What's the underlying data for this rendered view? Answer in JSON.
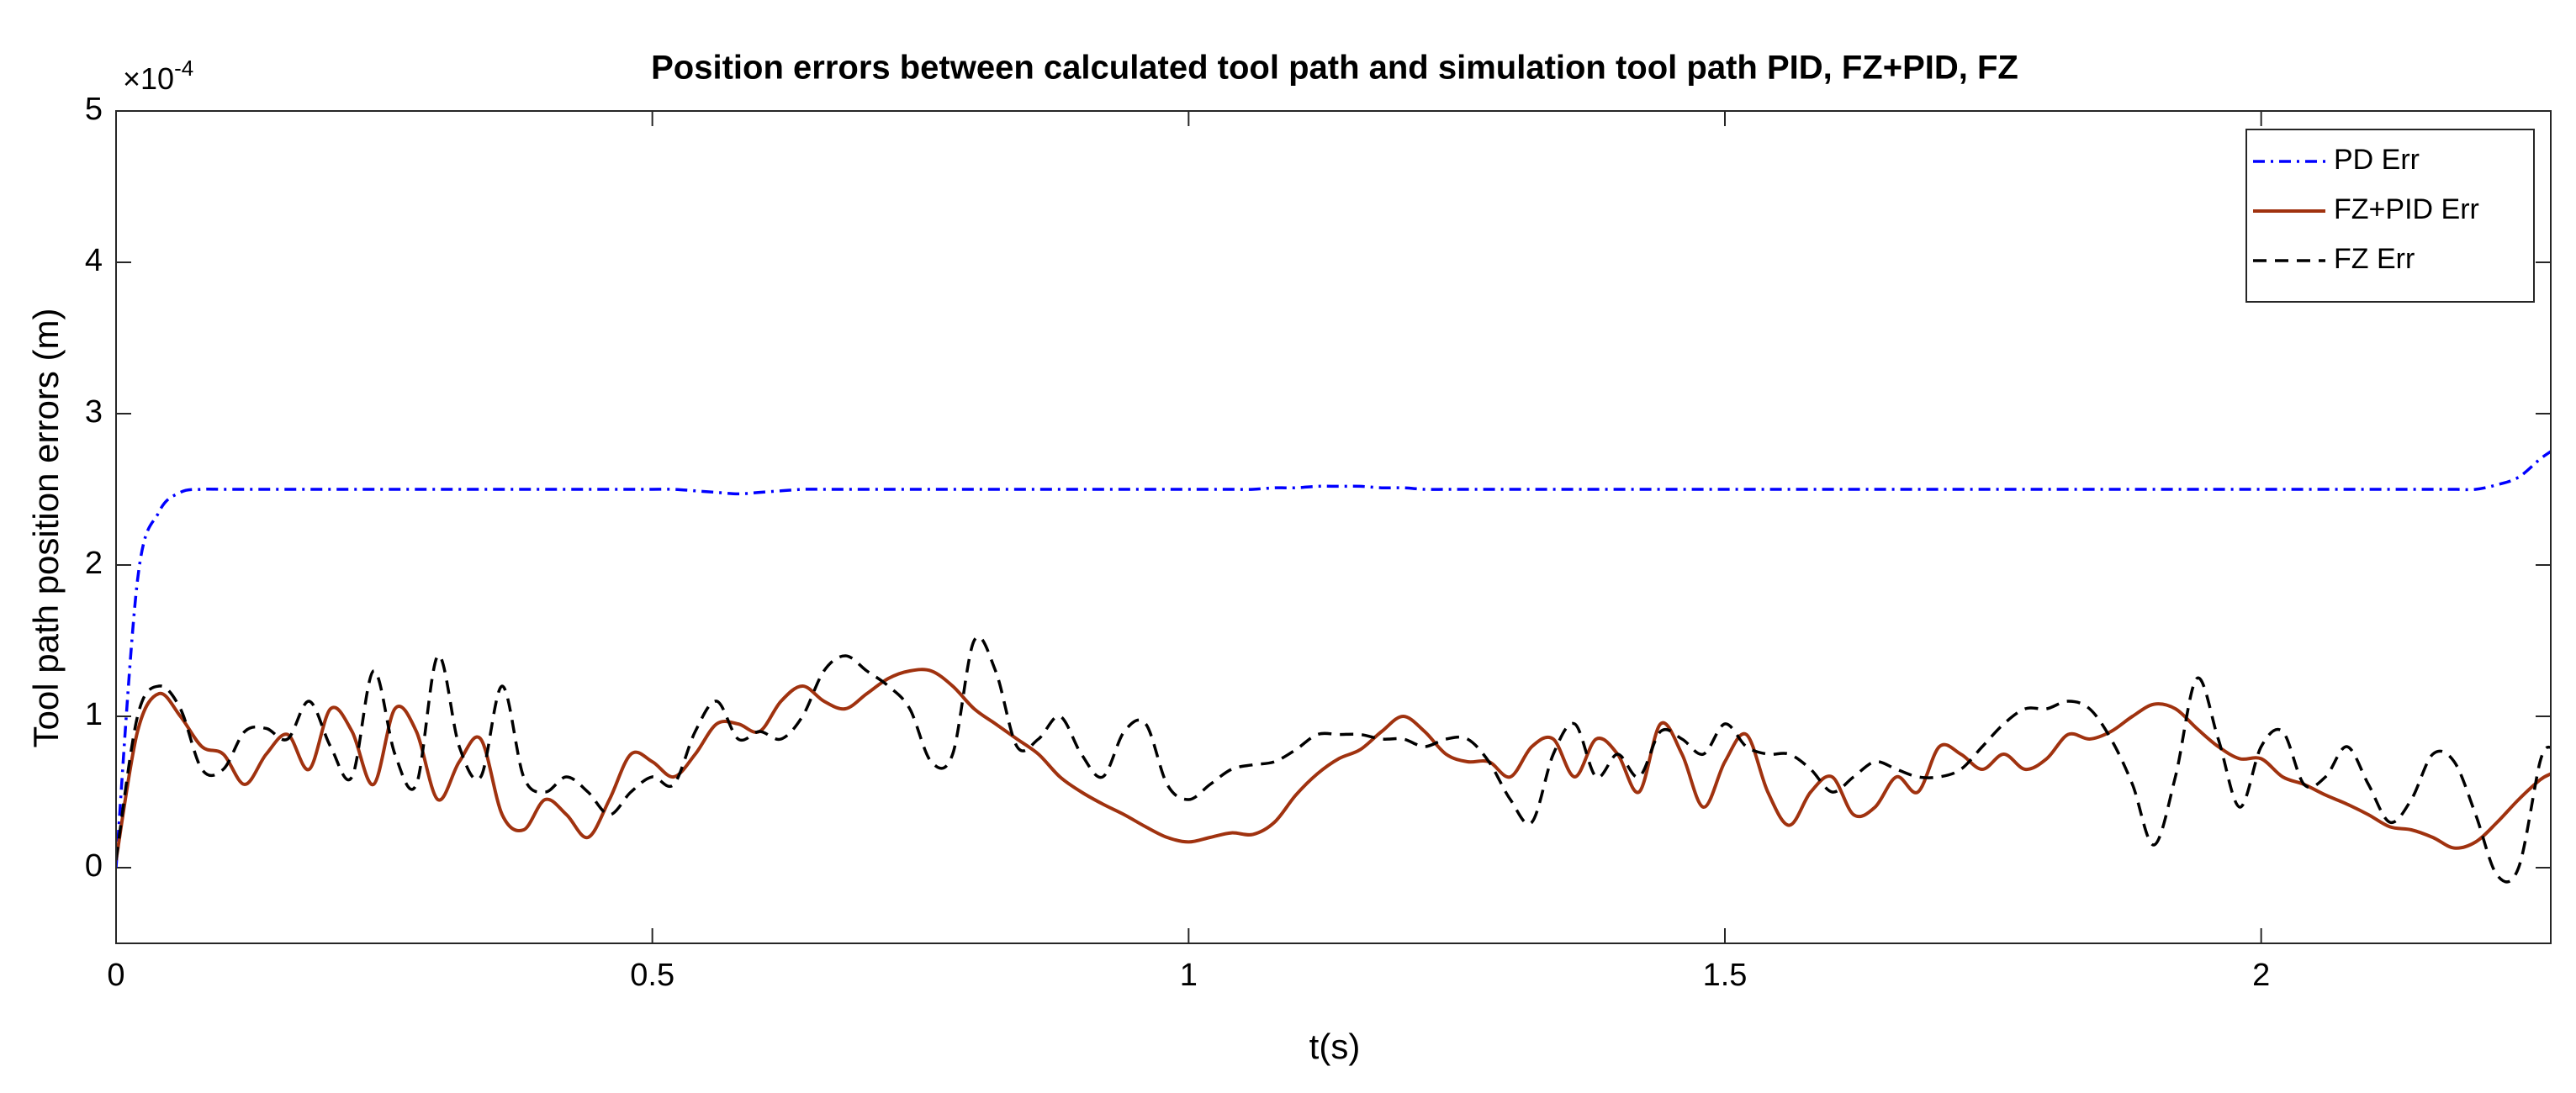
{
  "chart_data": {
    "type": "line",
    "title": "Position errors between calculated tool path and simulation tool path PID, FZ+PID, FZ",
    "xlabel": "t(s)",
    "ylabel": "Tool path position errors (m)",
    "yexponent": {
      "base": "×10",
      "power": "-4"
    },
    "xlim": [
      0,
      2.27
    ],
    "ylim": [
      -0.5,
      5
    ],
    "xticks": [
      0,
      0.5,
      1,
      1.5,
      2
    ],
    "yticks": [
      0,
      1,
      2,
      3,
      4,
      5
    ],
    "grid": false,
    "legend": "top-right",
    "x": [
      0,
      0.02,
      0.04,
      0.06,
      0.08,
      0.1,
      0.12,
      0.14,
      0.16,
      0.18,
      0.2,
      0.22,
      0.24,
      0.26,
      0.28,
      0.3,
      0.32,
      0.34,
      0.36,
      0.38,
      0.4,
      0.42,
      0.44,
      0.46,
      0.48,
      0.5,
      0.52,
      0.54,
      0.56,
      0.58,
      0.6,
      0.62,
      0.64,
      0.66,
      0.68,
      0.7,
      0.72,
      0.74,
      0.76,
      0.78,
      0.8,
      0.82,
      0.84,
      0.86,
      0.88,
      0.9,
      0.92,
      0.94,
      0.96,
      0.98,
      1.0,
      1.02,
      1.04,
      1.06,
      1.08,
      1.1,
      1.12,
      1.14,
      1.16,
      1.18,
      1.2,
      1.22,
      1.24,
      1.26,
      1.28,
      1.3,
      1.32,
      1.34,
      1.36,
      1.38,
      1.4,
      1.42,
      1.44,
      1.46,
      1.48,
      1.5,
      1.52,
      1.54,
      1.56,
      1.58,
      1.6,
      1.62,
      1.64,
      1.66,
      1.68,
      1.7,
      1.72,
      1.74,
      1.76,
      1.78,
      1.8,
      1.82,
      1.84,
      1.86,
      1.88,
      1.9,
      1.92,
      1.94,
      1.96,
      1.98,
      2.0,
      2.02,
      2.04,
      2.06,
      2.08,
      2.1,
      2.12,
      2.14,
      2.16,
      2.18,
      2.2,
      2.22,
      2.24,
      2.26,
      2.27
    ],
    "series": [
      {
        "name": "PD Err",
        "color": "#0000ff",
        "dash": "dashdot",
        "values": [
          0,
          1.9,
          2.35,
          2.48,
          2.5,
          2.5,
          2.5,
          2.5,
          2.5,
          2.5,
          2.5,
          2.5,
          2.5,
          2.5,
          2.5,
          2.5,
          2.5,
          2.5,
          2.5,
          2.5,
          2.5,
          2.5,
          2.5,
          2.5,
          2.5,
          2.5,
          2.5,
          2.49,
          2.48,
          2.47,
          2.48,
          2.49,
          2.5,
          2.5,
          2.5,
          2.5,
          2.5,
          2.5,
          2.5,
          2.5,
          2.5,
          2.5,
          2.5,
          2.5,
          2.5,
          2.5,
          2.5,
          2.5,
          2.5,
          2.5,
          2.5,
          2.5,
          2.5,
          2.5,
          2.51,
          2.51,
          2.52,
          2.52,
          2.52,
          2.51,
          2.51,
          2.5,
          2.5,
          2.5,
          2.5,
          2.5,
          2.5,
          2.5,
          2.5,
          2.5,
          2.5,
          2.5,
          2.5,
          2.5,
          2.5,
          2.5,
          2.5,
          2.5,
          2.5,
          2.5,
          2.5,
          2.5,
          2.5,
          2.5,
          2.5,
          2.5,
          2.5,
          2.5,
          2.5,
          2.5,
          2.5,
          2.5,
          2.5,
          2.5,
          2.5,
          2.5,
          2.5,
          2.5,
          2.5,
          2.5,
          2.5,
          2.5,
          2.5,
          2.5,
          2.5,
          2.5,
          2.5,
          2.5,
          2.5,
          2.5,
          2.5,
          2.53,
          2.58,
          2.7,
          2.75
        ]
      },
      {
        "name": "FZ+PID Err",
        "color": "#a0320f",
        "dash": "solid",
        "values": [
          0.05,
          0.9,
          1.15,
          1.0,
          0.8,
          0.75,
          0.55,
          0.75,
          0.88,
          0.65,
          1.05,
          0.9,
          0.55,
          1.05,
          0.9,
          0.45,
          0.7,
          0.85,
          0.35,
          0.25,
          0.45,
          0.35,
          0.2,
          0.45,
          0.75,
          0.7,
          0.6,
          0.75,
          0.95,
          0.95,
          0.9,
          1.1,
          1.2,
          1.1,
          1.05,
          1.15,
          1.25,
          1.3,
          1.3,
          1.2,
          1.05,
          0.95,
          0.85,
          0.75,
          0.6,
          0.5,
          0.42,
          0.35,
          0.27,
          0.2,
          0.17,
          0.2,
          0.23,
          0.22,
          0.3,
          0.48,
          0.62,
          0.72,
          0.78,
          0.9,
          1.0,
          0.9,
          0.75,
          0.7,
          0.7,
          0.6,
          0.8,
          0.85,
          0.6,
          0.85,
          0.75,
          0.5,
          0.95,
          0.75,
          0.4,
          0.7,
          0.88,
          0.5,
          0.28,
          0.5,
          0.6,
          0.35,
          0.4,
          0.6,
          0.5,
          0.8,
          0.75,
          0.65,
          0.75,
          0.65,
          0.72,
          0.88,
          0.85,
          0.9,
          1.0,
          1.08,
          1.05,
          0.92,
          0.8,
          0.72,
          0.72,
          0.6,
          0.55,
          0.48,
          0.42,
          0.35,
          0.27,
          0.25,
          0.2,
          0.13,
          0.17,
          0.3,
          0.45,
          0.58,
          0.62
        ]
      },
      {
        "name": "FZ Err",
        "color": "#000000",
        "dash": "dashed",
        "values": [
          0.05,
          1.0,
          1.2,
          1.05,
          0.65,
          0.65,
          0.9,
          0.92,
          0.85,
          1.1,
          0.8,
          0.6,
          1.3,
          0.75,
          0.55,
          1.4,
          0.8,
          0.6,
          1.2,
          0.6,
          0.5,
          0.6,
          0.5,
          0.35,
          0.5,
          0.6,
          0.55,
          0.9,
          1.1,
          0.85,
          0.9,
          0.85,
          1.0,
          1.3,
          1.4,
          1.3,
          1.2,
          1.05,
          0.7,
          0.75,
          1.5,
          1.3,
          0.8,
          0.85,
          1.0,
          0.75,
          0.6,
          0.9,
          0.95,
          0.55,
          0.45,
          0.55,
          0.65,
          0.68,
          0.7,
          0.78,
          0.88,
          0.88,
          0.88,
          0.85,
          0.85,
          0.8,
          0.85,
          0.85,
          0.7,
          0.45,
          0.3,
          0.75,
          0.95,
          0.6,
          0.75,
          0.6,
          0.9,
          0.85,
          0.75,
          0.95,
          0.8,
          0.75,
          0.75,
          0.65,
          0.5,
          0.6,
          0.7,
          0.65,
          0.6,
          0.6,
          0.65,
          0.8,
          0.95,
          1.05,
          1.05,
          1.1,
          1.05,
          0.85,
          0.55,
          0.15,
          0.6,
          1.25,
          0.85,
          0.4,
          0.8,
          0.9,
          0.55,
          0.6,
          0.8,
          0.55,
          0.3,
          0.45,
          0.75,
          0.7,
          0.35,
          -0.05,
          0.0,
          0.7,
          0.8
        ]
      }
    ]
  }
}
